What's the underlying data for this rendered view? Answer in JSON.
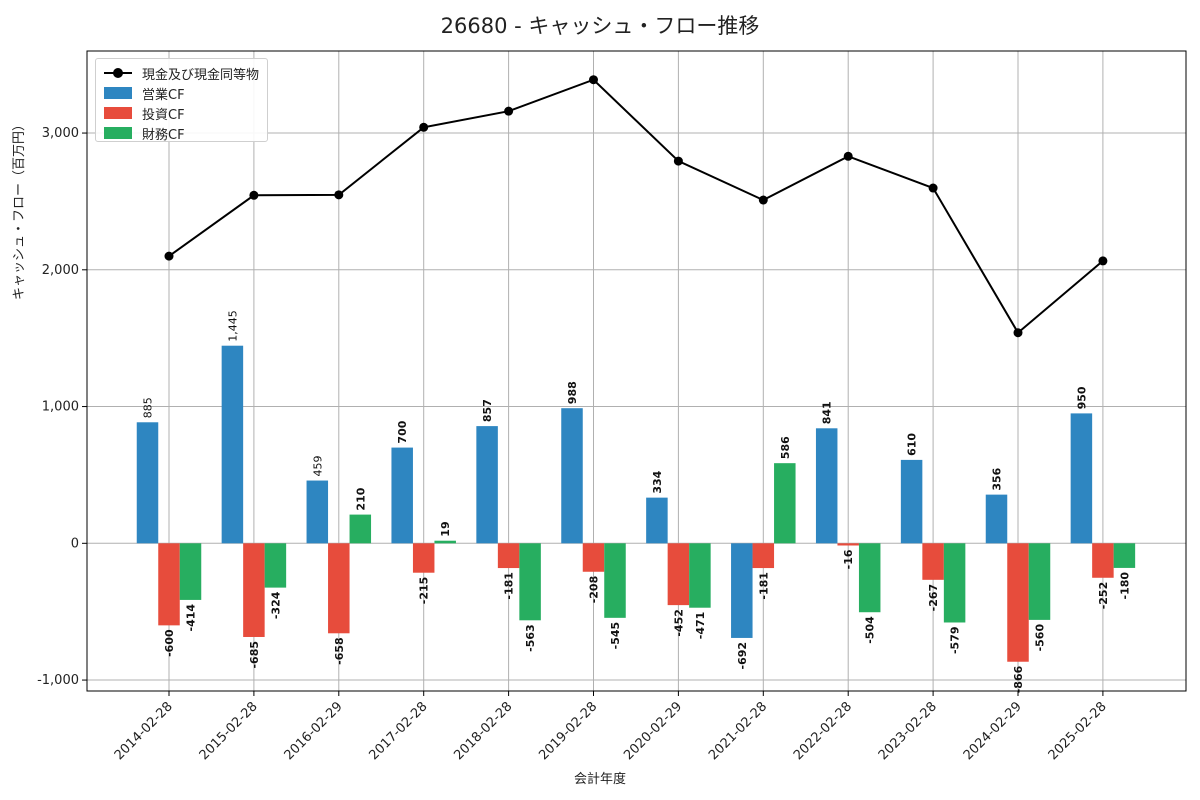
{
  "chart_data": {
    "type": "bar",
    "title": "26680 - キャッシュ・フロー推移",
    "xlabel": "会計年度",
    "ylabel": "キャッシュ・フロー（百万円）",
    "categories": [
      "2014-02-28",
      "2015-02-28",
      "2016-02-29",
      "2017-02-28",
      "2018-02-28",
      "2019-02-28",
      "2020-02-29",
      "2021-02-28",
      "2022-02-28",
      "2023-02-28",
      "2024-02-29",
      "2025-02-28"
    ],
    "yticks": [
      -1000,
      0,
      1000,
      2000,
      3000
    ],
    "ytick_labels": [
      "-1,000",
      "0",
      "1,000",
      "2,000",
      "3,000"
    ],
    "ylim": [
      -1080,
      3600
    ],
    "grid": true,
    "legend_position": "top-left",
    "series": [
      {
        "name": "営業CF",
        "kind": "bar",
        "color": "#2e86c1",
        "values": [
          885,
          1445,
          459,
          700,
          857,
          988,
          334,
          -692,
          841,
          610,
          356,
          950
        ],
        "labels": [
          "885",
          "1,445",
          "459",
          "700",
          "857",
          "988",
          "334",
          "-692",
          "841",
          "610",
          "356",
          "950"
        ]
      },
      {
        "name": "投資CF",
        "kind": "bar",
        "color": "#e74c3c",
        "values": [
          -600,
          -685,
          -658,
          -215,
          -181,
          -208,
          -452,
          -181,
          -16,
          -267,
          -866,
          -252
        ],
        "labels": [
          "-600",
          "-685",
          "-658",
          "-215",
          "-181",
          "-208",
          "-452",
          "-181",
          "-16",
          "-267",
          "-866",
          "-252"
        ]
      },
      {
        "name": "財務CF",
        "kind": "bar",
        "color": "#27ae60",
        "values": [
          -414,
          -324,
          210,
          19,
          -563,
          -545,
          -471,
          586,
          -504,
          -579,
          -560,
          -180
        ],
        "labels": [
          "-414",
          "-324",
          "210",
          "19",
          "-563",
          "-545",
          "-471",
          "586",
          "-504",
          "-579",
          "-560",
          "-180"
        ]
      },
      {
        "name": "現金及び現金同等物",
        "kind": "line",
        "color": "#000000",
        "values": [
          2100,
          2545,
          2548,
          3042,
          3160,
          3390,
          2795,
          2510,
          2830,
          2598,
          1540,
          2065
        ]
      }
    ]
  }
}
